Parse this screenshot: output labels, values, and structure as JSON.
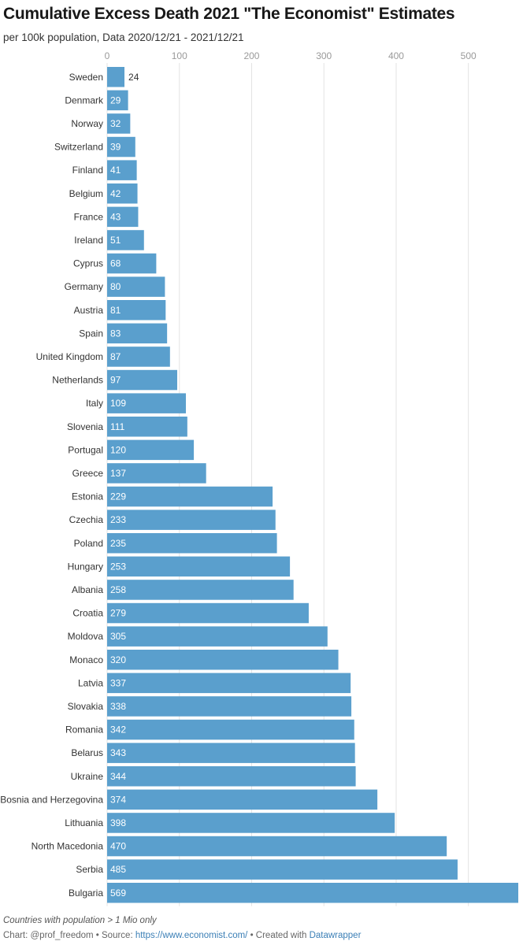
{
  "title": "Cumulative Excess Death 2021 \"The Economist\" Estimates",
  "subtitle": "per 100k population, Data 2020/12/21 - 2021/12/21",
  "notes": "Countries with population > 1 Mio only",
  "footer": {
    "chart_prefix": "Chart: @prof_freedom",
    "separator": " • ",
    "source_prefix": "Source: ",
    "source_link": "https://www.economist.com/",
    "created_prefix": "Created with ",
    "created_link": "Datawrapper"
  },
  "colors": {
    "bar": "#5a9fcd",
    "grid": "#e3e3e3",
    "label": "#333333",
    "tick": "#9a9a9a"
  },
  "chart_data": {
    "type": "bar",
    "orientation": "horizontal",
    "xlim": [
      0,
      569
    ],
    "xticks": [
      0,
      100,
      200,
      300,
      400,
      500
    ],
    "grid": true,
    "categories": [
      "Sweden",
      "Denmark",
      "Norway",
      "Switzerland",
      "Finland",
      "Belgium",
      "France",
      "Ireland",
      "Cyprus",
      "Germany",
      "Austria",
      "Spain",
      "United Kingdom",
      "Netherlands",
      "Italy",
      "Slovenia",
      "Portugal",
      "Greece",
      "Estonia",
      "Czechia",
      "Poland",
      "Hungary",
      "Albania",
      "Croatia",
      "Moldova",
      "Monaco",
      "Latvia",
      "Slovakia",
      "Romania",
      "Belarus",
      "Ukraine",
      "Bosnia and Herzegovina",
      "Lithuania",
      "North Macedonia",
      "Serbia",
      "Bulgaria"
    ],
    "values": [
      24,
      29,
      32,
      39,
      41,
      42,
      43,
      51,
      68,
      80,
      81,
      83,
      87,
      97,
      109,
      111,
      120,
      137,
      229,
      233,
      235,
      253,
      258,
      279,
      305,
      320,
      337,
      338,
      342,
      343,
      344,
      374,
      398,
      470,
      485,
      569
    ]
  }
}
